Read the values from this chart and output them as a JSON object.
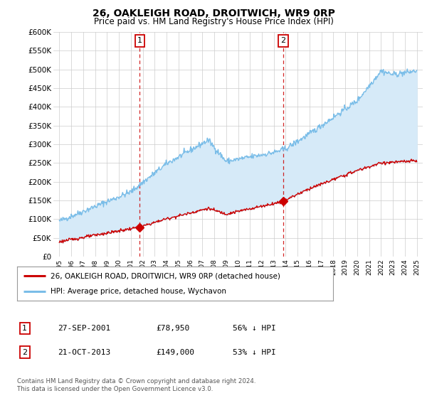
{
  "title": "26, OAKLEIGH ROAD, DROITWICH, WR9 0RP",
  "subtitle": "Price paid vs. HM Land Registry's House Price Index (HPI)",
  "hpi_color": "#7abde8",
  "price_color": "#cc0000",
  "fill_color": "#d6eaf8",
  "dashed_color": "#cc0000",
  "background_color": "#ffffff",
  "grid_color": "#cccccc",
  "ylim": [
    0,
    600000
  ],
  "yticks": [
    0,
    50000,
    100000,
    150000,
    200000,
    250000,
    300000,
    350000,
    400000,
    450000,
    500000,
    550000,
    600000
  ],
  "ytick_labels": [
    "£0",
    "£50K",
    "£100K",
    "£150K",
    "£200K",
    "£250K",
    "£300K",
    "£350K",
    "£400K",
    "£450K",
    "£500K",
    "£550K",
    "£600K"
  ],
  "sale1_date": 2001.74,
  "sale1_price": 78950,
  "sale1_label": "1",
  "sale2_date": 2013.8,
  "sale2_price": 149000,
  "sale2_label": "2",
  "legend_entry1": "26, OAKLEIGH ROAD, DROITWICH, WR9 0RP (detached house)",
  "legend_entry2": "HPI: Average price, detached house, Wychavon",
  "table_row1_num": "1",
  "table_row1_date": "27-SEP-2001",
  "table_row1_price": "£78,950",
  "table_row1_hpi": "56% ↓ HPI",
  "table_row2_num": "2",
  "table_row2_date": "21-OCT-2013",
  "table_row2_price": "£149,000",
  "table_row2_hpi": "53% ↓ HPI",
  "footer": "Contains HM Land Registry data © Crown copyright and database right 2024.\nThis data is licensed under the Open Government Licence v3.0.",
  "xlim_start": 1994.5,
  "xlim_end": 2025.5
}
